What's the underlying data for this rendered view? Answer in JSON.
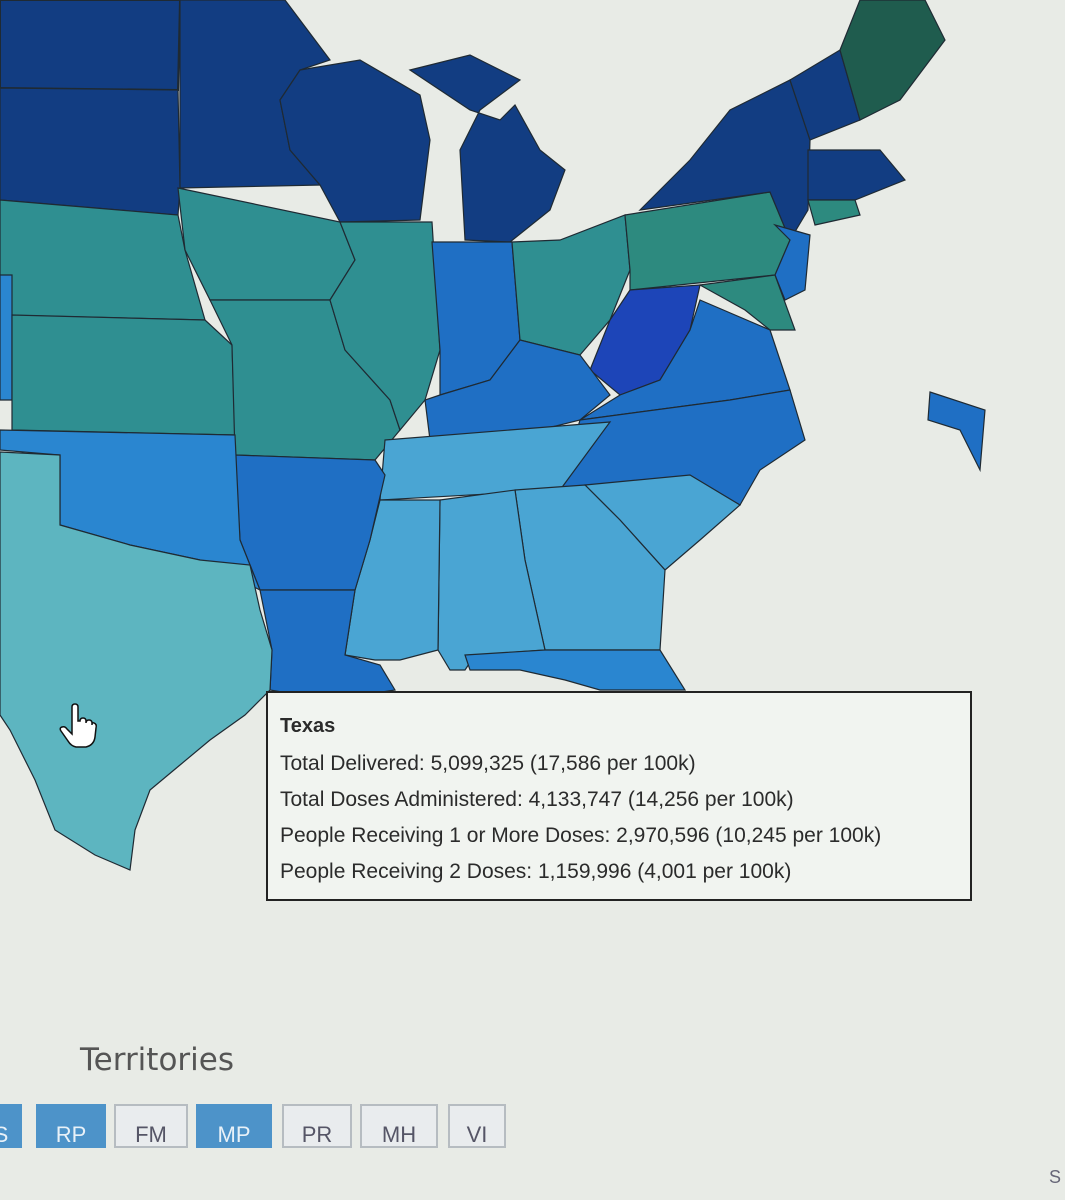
{
  "tooltip": {
    "state": "Texas",
    "lines": [
      "Total Delivered: 5,099,325 (17,586 per 100k)",
      "Total Doses Administered: 4,133,747 (14,256 per 100k)",
      "People Receiving 1 or More Doses: 2,970,596 (10,245 per 100k)",
      "People Receiving 2 Doses: 1,159,996 (4,001 per 100k)"
    ]
  },
  "territories": {
    "heading": "Territories",
    "tabs": [
      {
        "label": "S",
        "active": true
      },
      {
        "label": "RP",
        "active": true
      },
      {
        "label": "FM",
        "active": false
      },
      {
        "label": "MP",
        "active": true
      },
      {
        "label": "PR",
        "active": false
      },
      {
        "label": "MH",
        "active": false
      },
      {
        "label": "VI",
        "active": false
      }
    ]
  },
  "corner_text": "S",
  "colors": {
    "dark_navy": "#123d82",
    "blue": "#1f6fc4",
    "mid_blue": "#2a86d0",
    "light_blue": "#4aa5d3",
    "teal": "#2f8f91",
    "light_teal": "#5db5c0",
    "sea_green": "#2d8a7f",
    "dark_green": "#1f5c4e",
    "bright_blue": "#1d45b8",
    "background": "#e8ebe6"
  },
  "icons": {
    "cursor": "hand-pointer-icon"
  }
}
